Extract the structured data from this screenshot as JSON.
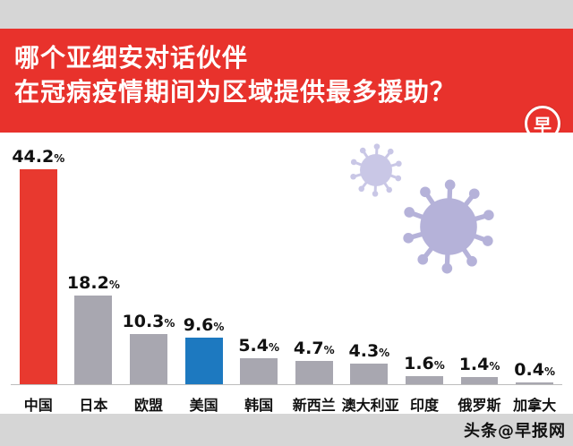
{
  "header": {
    "title_line1": "哪个亚细安对话伙伴",
    "title_line2": "在冠病疫情期间为区域提供最多援助？",
    "logo_char": "早",
    "bg_color": "#e8322c"
  },
  "chart_data": {
    "type": "bar",
    "title": "哪个亚细安对话伙伴在冠病疫情期间为区域提供最多援助？",
    "categories": [
      "中国",
      "日本",
      "欧盟",
      "美国",
      "韩国",
      "新西兰",
      "澳大利亚",
      "印度",
      "俄罗斯",
      "加拿大"
    ],
    "values": [
      44.2,
      18.2,
      10.3,
      9.6,
      5.4,
      4.7,
      4.3,
      1.6,
      1.4,
      0.4
    ],
    "value_labels": [
      "44.2",
      "18.2",
      "10.3",
      "9.6",
      "5.4",
      "4.7",
      "4.3",
      "1.6",
      "1.4",
      "0.4"
    ],
    "percent_sign": "%",
    "bar_colors": [
      "#e8392f",
      "#a8a7b0",
      "#a8a7b0",
      "#1d79c0",
      "#a8a7b0",
      "#a8a7b0",
      "#a8a7b0",
      "#a8a7b0",
      "#a8a7b0",
      "#a8a7b0"
    ],
    "xlabel": "",
    "ylabel": "",
    "ylim": [
      0,
      46
    ],
    "grid": false,
    "legend": false
  },
  "decor": {
    "virus_small_color": "#c9c7e6",
    "virus_large_color": "#b5b2d9"
  },
  "footer": {
    "watermark": "头条@早报网"
  }
}
